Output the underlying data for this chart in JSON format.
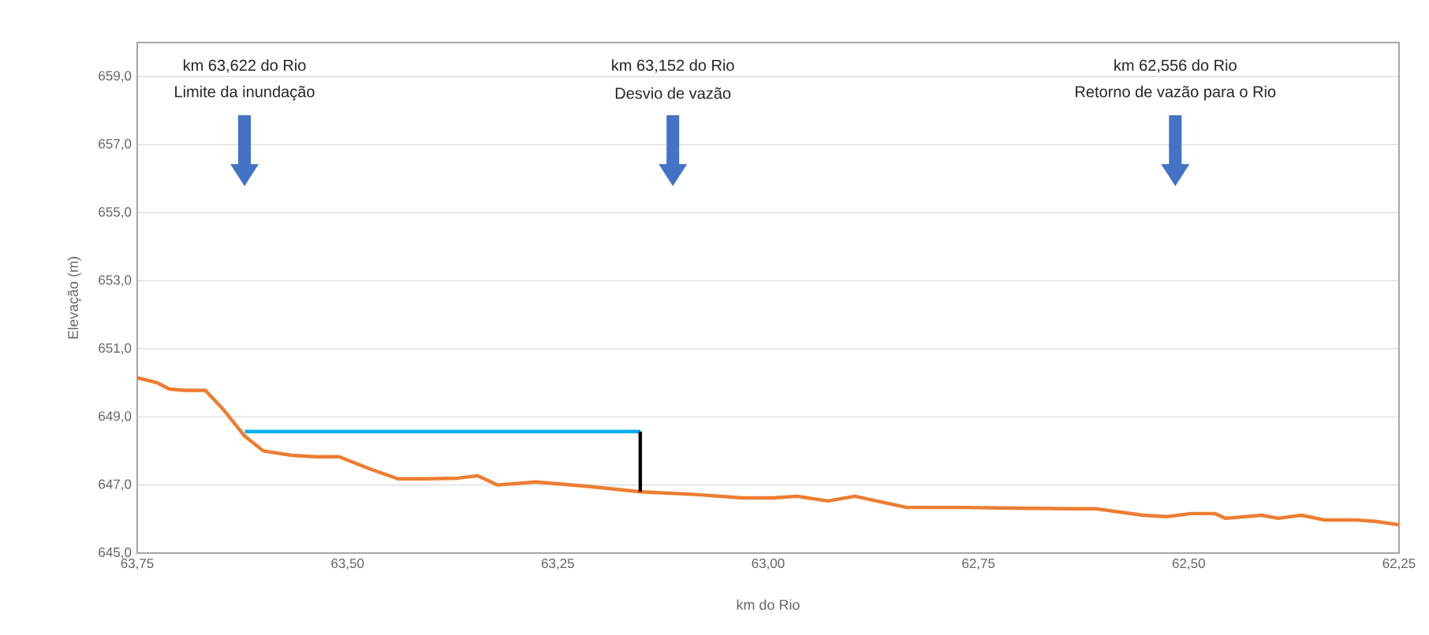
{
  "chart_data": {
    "type": "line",
    "xlabel": "km do Rio",
    "ylabel": "Elevação (m)",
    "xlim": [
      63.75,
      62.25
    ],
    "ylim": [
      645,
      660
    ],
    "xticks": [
      {
        "value": 63.75,
        "label": "63,75"
      },
      {
        "value": 63.5,
        "label": "63,50"
      },
      {
        "value": 63.25,
        "label": "63,25"
      },
      {
        "value": 63.0,
        "label": "63,00"
      },
      {
        "value": 62.75,
        "label": "62,75"
      },
      {
        "value": 62.5,
        "label": "62,50"
      },
      {
        "value": 62.25,
        "label": "62,25"
      }
    ],
    "yticks": [
      {
        "value": 645,
        "label": "645,0"
      },
      {
        "value": 647,
        "label": "647,0"
      },
      {
        "value": 649,
        "label": "649,0"
      },
      {
        "value": 651,
        "label": "651,0"
      },
      {
        "value": 653,
        "label": "653,0"
      },
      {
        "value": 655,
        "label": "655,0"
      },
      {
        "value": 657,
        "label": "657,0"
      },
      {
        "value": 659,
        "label": "659,0"
      }
    ],
    "grid": "y",
    "series": [
      {
        "color": "#ed7d31",
        "x": [
          63.75,
          63.726,
          63.712,
          63.694,
          63.669,
          63.647,
          63.622,
          63.6,
          63.566,
          63.538,
          63.51,
          63.472,
          63.44,
          63.407,
          63.369,
          63.345,
          63.322,
          63.276,
          63.21,
          63.152,
          63.087,
          63.03,
          62.994,
          62.966,
          62.929,
          62.897,
          62.835,
          62.769,
          62.638,
          62.61,
          62.554,
          62.526,
          62.497,
          62.469,
          62.456,
          62.413,
          62.394,
          62.366,
          62.338,
          62.3,
          62.278,
          62.25
        ],
        "values": [
          650.15,
          650.0,
          649.82,
          649.78,
          649.78,
          649.2,
          648.43,
          648.0,
          647.87,
          647.83,
          647.83,
          647.46,
          647.18,
          647.18,
          647.2,
          647.27,
          647.0,
          647.09,
          646.95,
          646.8,
          646.72,
          646.62,
          646.62,
          646.67,
          646.53,
          646.67,
          646.34,
          646.34,
          646.3,
          646.3,
          646.11,
          646.07,
          646.16,
          646.16,
          646.02,
          646.11,
          646.02,
          646.11,
          645.97,
          645.97,
          645.93,
          645.83
        ]
      },
      {
        "color": "#00b0f0",
        "x": [
          63.622,
          63.152
        ],
        "values": [
          648.57,
          648.57
        ]
      },
      {
        "color": "#000000",
        "x": [
          63.152,
          63.152
        ],
        "values": [
          648.57,
          646.8
        ]
      }
    ],
    "annotations": [
      "km 63,622 do Rio",
      "Limite da inundação",
      "km 63,152 do Rio",
      "Desvio de vazão",
      "km 62,556 do Rio",
      "Retorno de vazão para o Rio"
    ]
  }
}
